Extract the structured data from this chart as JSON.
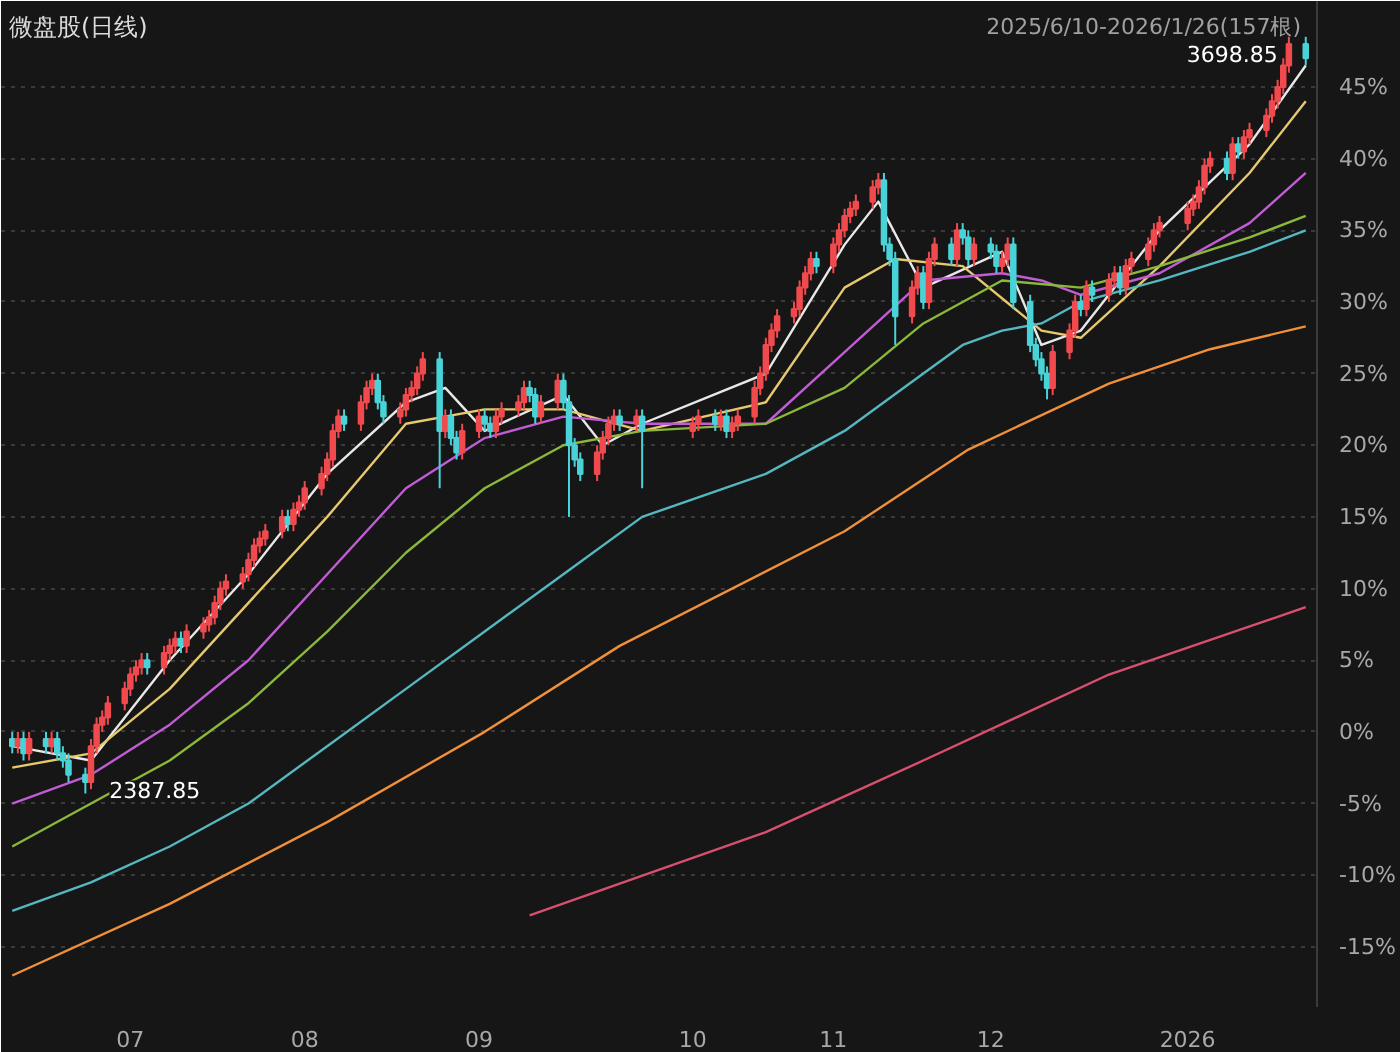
{
  "chart_data": {
    "type": "candlestick",
    "title": "微盘股(日线)",
    "subtitle": "2025/6/10-2026/1/26(157根)",
    "x": [
      "2025-06-10",
      "2025-06-11",
      "2025-06-12",
      "2025-06-13",
      "2025-06-16",
      "2025-06-17",
      "2025-06-18",
      "2025-06-19",
      "2025-06-20",
      "2025-06-23",
      "2025-06-24",
      "2025-06-25",
      "2025-06-26",
      "2025-06-27",
      "2025-06-30",
      "2025-07-01",
      "2025-07-02",
      "2025-07-03",
      "2025-07-04",
      "2025-07-07",
      "2025-07-08",
      "2025-07-09",
      "2025-07-10",
      "2025-07-11",
      "2025-07-14",
      "2025-07-15",
      "2025-07-16",
      "2025-07-17",
      "2025-07-18",
      "2025-07-21",
      "2025-07-22",
      "2025-07-23",
      "2025-07-24",
      "2025-07-25",
      "2025-07-28",
      "2025-07-29",
      "2025-07-30",
      "2025-07-31",
      "2025-08-01",
      "2025-08-04",
      "2025-08-05",
      "2025-08-06",
      "2025-08-07",
      "2025-08-08",
      "2025-08-11",
      "2025-08-12",
      "2025-08-13",
      "2025-08-14",
      "2025-08-15",
      "2025-08-18",
      "2025-08-19",
      "2025-08-20",
      "2025-08-21",
      "2025-08-22",
      "2025-08-25",
      "2025-08-26",
      "2025-08-27",
      "2025-08-28",
      "2025-08-29",
      "2025-09-01",
      "2025-09-02",
      "2025-09-03",
      "2025-09-04",
      "2025-09-05",
      "2025-09-08",
      "2025-09-09",
      "2025-09-10",
      "2025-09-11",
      "2025-09-12",
      "2025-09-15",
      "2025-09-16",
      "2025-09-17",
      "2025-09-18",
      "2025-09-19",
      "2025-09-22",
      "2025-09-23",
      "2025-09-24",
      "2025-09-25",
      "2025-09-26",
      "2025-09-29",
      "2025-09-30",
      "2025-10-09",
      "2025-10-10",
      "2025-10-13",
      "2025-10-14",
      "2025-10-15",
      "2025-10-16",
      "2025-10-17",
      "2025-10-20",
      "2025-10-21",
      "2025-10-22",
      "2025-10-23",
      "2025-10-24",
      "2025-10-27",
      "2025-10-28",
      "2025-10-29",
      "2025-10-30",
      "2025-10-31",
      "2025-11-03",
      "2025-11-04",
      "2025-11-05",
      "2025-11-06",
      "2025-11-07",
      "2025-11-10",
      "2025-11-11",
      "2025-11-12",
      "2025-11-13",
      "2025-11-14",
      "2025-11-17",
      "2025-11-18",
      "2025-11-19",
      "2025-11-20",
      "2025-11-21",
      "2025-11-24",
      "2025-11-25",
      "2025-11-26",
      "2025-11-27",
      "2025-11-28",
      "2025-12-01",
      "2025-12-02",
      "2025-12-03",
      "2025-12-04",
      "2025-12-05",
      "2025-12-08",
      "2025-12-09",
      "2025-12-10",
      "2025-12-11",
      "2025-12-12",
      "2025-12-15",
      "2025-12-16",
      "2025-12-17",
      "2025-12-18",
      "2025-12-19",
      "2025-12-22",
      "2025-12-23",
      "2025-12-24",
      "2025-12-25",
      "2025-12-26",
      "2025-12-29",
      "2025-12-30",
      "2025-12-31",
      "2026-01-05",
      "2026-01-06",
      "2026-01-07",
      "2026-01-08",
      "2026-01-09",
      "2026-01-12",
      "2026-01-13",
      "2026-01-14",
      "2026-01-15",
      "2026-01-16",
      "2026-01-19",
      "2026-01-20",
      "2026-01-21",
      "2026-01-22",
      "2026-01-23",
      "2026-01-26"
    ],
    "colors": [
      "#49d3d8",
      "#f04a4e",
      "#49d3d8",
      "#f04a4e",
      "#49d3d8",
      "#f04a4e",
      "#49d3d8",
      "#49d3d8",
      "#49d3d8",
      "#49d3d8",
      "#f04a4e",
      "#f04a4e",
      "#f04a4e",
      "#f04a4e",
      "#f04a4e",
      "#f04a4e",
      "#f04a4e",
      "#f04a4e",
      "#49d3d8",
      "#f04a4e",
      "#f04a4e",
      "#f04a4e",
      "#49d3d8",
      "#f04a4e",
      "#f04a4e",
      "#f04a4e",
      "#f04a4e",
      "#f04a4e",
      "#f04a4e",
      "#f04a4e",
      "#f04a4e",
      "#f04a4e",
      "#f04a4e",
      "#f04a4e",
      "#f04a4e",
      "#49d3d8",
      "#f04a4e",
      "#f04a4e",
      "#f04a4e",
      "#f04a4e",
      "#f04a4e",
      "#f04a4e",
      "#f04a4e",
      "#49d3d8",
      "#f04a4e",
      "#f04a4e",
      "#f04a4e",
      "#49d3d8",
      "#49d3d8",
      "#f04a4e",
      "#f04a4e",
      "#f04a4e",
      "#f04a4e",
      "#f04a4e",
      "#49d3d8",
      "#f04a4e",
      "#49d3d8",
      "#49d3d8",
      "#f04a4e",
      "#f04a4e",
      "#49d3d8",
      "#49d3d8",
      "#f04a4e",
      "#f04a4e",
      "#f04a4e",
      "#f04a4e",
      "#49d3d8",
      "#49d3d8",
      "#f04a4e",
      "#f04a4e",
      "#49d3d8",
      "#49d3d8",
      "#49d3d8",
      "#49d3d8",
      "#f04a4e",
      "#f04a4e",
      "#f04a4e",
      "#f04a4e",
      "#49d3d8",
      "#f04a4e",
      "#49d3d8",
      "#f04a4e",
      "#f04a4e",
      "#49d3d8",
      "#f04a4e",
      "#49d3d8",
      "#f04a4e",
      "#f04a4e",
      "#f04a4e",
      "#f04a4e",
      "#f04a4e",
      "#f04a4e",
      "#f04a4e",
      "#f04a4e",
      "#f04a4e",
      "#f04a4e",
      "#f04a4e",
      "#49d3d8",
      "#f04a4e",
      "#f04a4e",
      "#f04a4e",
      "#f04a4e",
      "#f04a4e",
      "#f04a4e",
      "#f04a4e",
      "#49d3d8",
      "#49d3d8",
      "#49d3d8",
      "#f04a4e",
      "#f04a4e",
      "#49d3d8",
      "#f04a4e",
      "#f04a4e",
      "#49d3d8",
      "#f04a4e",
      "#49d3d8",
      "#49d3d8",
      "#f04a4e",
      "#49d3d8",
      "#49d3d8",
      "#f04a4e",
      "#f04a4e",
      "#49d3d8",
      "#49d3d8",
      "#49d3d8",
      "#49d3d8",
      "#49d3d8",
      "#f04a4e",
      "#f04a4e",
      "#f04a4e",
      "#49d3d8",
      "#f04a4e",
      "#49d3d8",
      "#f04a4e",
      "#f04a4e",
      "#49d3d8",
      "#f04a4e",
      "#f04a4e",
      "#f04a4e",
      "#f04a4e",
      "#f04a4e",
      "#f04a4e",
      "#f04a4e",
      "#f04a4e",
      "#f04a4e",
      "#f04a4e",
      "#49d3d8",
      "#f04a4e",
      "#49d3d8",
      "#f04a4e",
      "#f04a4e",
      "#f04a4e",
      "#f04a4e",
      "#f04a4e",
      "#f04a4e",
      "#f04a4e",
      "#49d3d8"
    ],
    "ohlc": [
      [
        -0.5,
        0,
        -1.5,
        -1
      ],
      [
        -1,
        0,
        -1.5,
        -0.5
      ],
      [
        -0.5,
        0,
        -2,
        -1.5
      ],
      [
        -1.5,
        0,
        -2,
        -0.5
      ],
      [
        -0.5,
        0,
        -1.5,
        -1
      ],
      [
        -1,
        0,
        -1.5,
        -0.5
      ],
      [
        -0.5,
        0,
        -2,
        -1.5
      ],
      [
        -1.5,
        -1,
        -2.5,
        -2
      ],
      [
        -2,
        -1.5,
        -3.5,
        -3
      ],
      [
        -3,
        -2.5,
        -4.3,
        -3.5
      ],
      [
        -3.5,
        -0.5,
        -4,
        -1
      ],
      [
        -1,
        1,
        -1.5,
        0.5
      ],
      [
        0.5,
        1.5,
        0,
        1
      ],
      [
        1,
        2.5,
        0.5,
        2
      ],
      [
        2,
        3.5,
        1.5,
        3
      ],
      [
        3,
        4.5,
        2.5,
        4
      ],
      [
        4,
        5,
        3.5,
        4.5
      ],
      [
        4.5,
        5.5,
        4,
        5
      ],
      [
        5,
        5.5,
        4,
        4.5
      ],
      [
        4.5,
        6,
        4,
        5.5
      ],
      [
        5.5,
        6.5,
        5,
        6
      ],
      [
        6,
        7,
        5.5,
        6.5
      ],
      [
        6.5,
        7,
        5.5,
        6
      ],
      [
        6,
        7.5,
        5.5,
        7
      ],
      [
        7,
        8,
        6.5,
        7.5
      ],
      [
        7.5,
        8.5,
        7,
        8
      ],
      [
        8,
        9.5,
        7.5,
        9
      ],
      [
        9,
        10.5,
        8.5,
        10
      ],
      [
        10,
        11,
        9.5,
        10.5
      ],
      [
        10.5,
        11.5,
        10,
        11
      ],
      [
        11,
        12.5,
        10.5,
        12
      ],
      [
        12,
        13.5,
        11.5,
        13
      ],
      [
        13,
        14,
        12.5,
        13.5
      ],
      [
        13.5,
        14.5,
        13,
        14
      ],
      [
        14,
        15.5,
        13.5,
        15
      ],
      [
        15,
        15.5,
        14,
        14.5
      ],
      [
        14.5,
        16,
        14,
        15.5
      ],
      [
        15.5,
        16.5,
        15,
        16
      ],
      [
        16,
        17.5,
        15.5,
        17
      ],
      [
        17,
        18.5,
        16.5,
        18
      ],
      [
        18,
        19.5,
        17.5,
        19
      ],
      [
        19,
        21.5,
        18.5,
        21
      ],
      [
        21,
        22.5,
        20.5,
        22
      ],
      [
        22,
        22.5,
        21,
        21.5
      ],
      [
        21.5,
        23.5,
        21,
        23
      ],
      [
        23,
        24.5,
        22.5,
        24
      ],
      [
        24,
        25,
        23.5,
        24.5
      ],
      [
        24.5,
        25,
        22.5,
        23
      ],
      [
        23,
        23.5,
        21.5,
        22
      ],
      [
        22,
        23,
        21.5,
        22.5
      ],
      [
        22.5,
        24,
        22,
        23.5
      ],
      [
        23.5,
        24.5,
        23,
        24
      ],
      [
        24,
        25.5,
        23.5,
        25
      ],
      [
        25,
        26.5,
        24.5,
        26
      ],
      [
        26,
        26.5,
        17,
        21
      ],
      [
        21,
        22.5,
        20.5,
        22
      ],
      [
        22,
        22.5,
        20,
        20.5
      ],
      [
        20.5,
        21,
        19,
        19.5
      ],
      [
        19.5,
        21.5,
        19,
        21
      ],
      [
        21,
        22.5,
        20.5,
        22
      ],
      [
        22,
        22.5,
        21,
        21.5
      ],
      [
        21.5,
        22,
        20.5,
        21
      ],
      [
        21,
        22.5,
        20.5,
        22
      ],
      [
        22,
        23,
        21.5,
        22.5
      ],
      [
        22.5,
        23.5,
        22,
        23
      ],
      [
        23,
        24.5,
        22.5,
        24
      ],
      [
        24,
        24.5,
        23,
        23.5
      ],
      [
        23.5,
        24,
        21.5,
        22
      ],
      [
        22,
        23.5,
        21.5,
        23
      ],
      [
        23,
        25,
        22.5,
        24.5
      ],
      [
        24.5,
        25,
        22.5,
        23
      ],
      [
        23,
        23.5,
        15,
        20
      ],
      [
        20,
        20.5,
        18.5,
        19
      ],
      [
        19,
        19.5,
        17.5,
        18
      ],
      [
        18,
        20,
        17.5,
        19.5
      ],
      [
        19.5,
        21,
        19,
        20.5
      ],
      [
        20.5,
        22,
        20,
        21.5
      ],
      [
        21.5,
        22.5,
        21,
        22
      ],
      [
        22,
        22.5,
        21,
        21.5
      ],
      [
        21.5,
        22.5,
        21,
        22
      ],
      [
        22,
        22.5,
        17,
        21
      ],
      [
        21,
        22,
        20.5,
        21.5
      ],
      [
        21.5,
        22.5,
        21,
        22
      ],
      [
        22,
        22.5,
        21,
        21.5
      ],
      [
        21.5,
        22.5,
        21,
        22
      ],
      [
        22,
        22.5,
        20.5,
        21
      ],
      [
        21,
        22,
        20.5,
        21.5
      ],
      [
        21.5,
        22.5,
        21,
        22
      ],
      [
        22,
        24.5,
        21.5,
        24
      ],
      [
        24,
        25.5,
        23.5,
        25
      ],
      [
        25,
        27.5,
        24.5,
        27
      ],
      [
        27,
        28.5,
        26.5,
        28
      ],
      [
        28,
        29.5,
        27.5,
        29
      ],
      [
        29,
        30,
        28.5,
        29.5
      ],
      [
        29.5,
        31.5,
        29,
        31
      ],
      [
        31,
        32.5,
        30.5,
        32
      ],
      [
        32,
        33.5,
        31.5,
        33
      ],
      [
        33,
        33.5,
        32,
        32.5
      ],
      [
        32.5,
        34.5,
        32,
        34
      ],
      [
        34,
        35.5,
        33.5,
        35
      ],
      [
        35,
        36.5,
        34.5,
        36
      ],
      [
        36,
        37,
        35.5,
        36.5
      ],
      [
        36.5,
        37.5,
        36,
        37
      ],
      [
        37,
        38.5,
        36.5,
        38
      ],
      [
        38,
        39,
        37.5,
        38.5
      ],
      [
        38.5,
        39,
        33.5,
        34
      ],
      [
        34,
        34.5,
        32.5,
        33
      ],
      [
        33,
        33.5,
        27,
        29
      ],
      [
        29,
        31.5,
        28.5,
        31
      ],
      [
        31,
        32.5,
        30.5,
        32
      ],
      [
        32,
        32.5,
        29.5,
        30
      ],
      [
        30,
        33.5,
        29.5,
        33
      ],
      [
        33,
        34.5,
        32.5,
        34
      ],
      [
        34,
        34.5,
        32.5,
        33
      ],
      [
        33,
        35.5,
        32.5,
        35
      ],
      [
        35,
        35.5,
        34,
        34.5
      ],
      [
        34.5,
        35,
        32.5,
        33
      ],
      [
        33,
        34.5,
        32.5,
        34
      ],
      [
        34,
        34.5,
        33,
        33.5
      ],
      [
        33.5,
        34,
        32,
        32.5
      ],
      [
        32.5,
        33.5,
        32,
        33
      ],
      [
        33,
        34.5,
        32.5,
        34
      ],
      [
        34,
        34.5,
        29.5,
        30
      ],
      [
        30,
        30.5,
        26.5,
        27
      ],
      [
        27,
        27.5,
        25.5,
        26
      ],
      [
        26,
        26.5,
        24.5,
        25
      ],
      [
        25,
        25.5,
        23.2,
        24
      ],
      [
        24,
        27,
        23.5,
        26.5
      ],
      [
        26.5,
        28.5,
        26,
        28
      ],
      [
        28,
        30.5,
        27.5,
        30
      ],
      [
        30,
        30.5,
        29,
        29.5
      ],
      [
        29.5,
        31.5,
        29,
        31
      ],
      [
        31,
        31.5,
        30,
        30.5
      ],
      [
        30.5,
        32,
        30,
        31.5
      ],
      [
        31.5,
        32.5,
        31,
        32
      ],
      [
        32,
        32.5,
        30.5,
        31
      ],
      [
        31,
        33,
        30.5,
        32.5
      ],
      [
        32.5,
        33.5,
        32,
        33
      ],
      [
        33,
        34.5,
        32.5,
        34
      ],
      [
        34,
        35.5,
        33.5,
        35
      ],
      [
        35,
        36,
        34.5,
        35.5
      ],
      [
        35.5,
        37,
        35,
        36.5
      ],
      [
        36.5,
        37.5,
        36,
        37
      ],
      [
        37,
        38.5,
        36.5,
        38
      ],
      [
        38,
        40,
        37.5,
        39.5
      ],
      [
        39.5,
        40.5,
        39,
        40
      ],
      [
        40,
        40.5,
        38.5,
        39
      ],
      [
        39,
        41.5,
        38.5,
        41
      ],
      [
        41,
        41.5,
        40,
        40.5
      ],
      [
        40.5,
        42,
        40,
        41.5
      ],
      [
        41.5,
        42.5,
        41,
        42
      ],
      [
        42,
        43.5,
        41.5,
        43
      ],
      [
        43,
        44.5,
        42.5,
        44
      ],
      [
        44,
        45.5,
        43.5,
        45
      ],
      [
        45,
        47,
        44.5,
        46.5
      ],
      [
        46.5,
        48.5,
        46,
        48
      ],
      [
        48,
        48.5,
        46.5,
        47
      ]
    ],
    "series": [
      {
        "type": "line",
        "color": "#e8e8e8",
        "x": [
          "2025-06-10",
          "2025-06-24",
          "2025-07-08",
          "2025-07-22",
          "2025-08-05",
          "2025-08-19",
          "2025-08-26",
          "2025-09-02",
          "2025-09-16",
          "2025-09-23",
          "2025-09-30",
          "2025-10-22",
          "2025-11-05",
          "2025-11-11",
          "2025-11-19",
          "2025-12-03",
          "2025-12-10",
          "2025-12-17",
          "2025-12-31",
          "2026-01-16",
          "2026-01-26"
        ],
        "values": [
          -1,
          -2,
          5,
          11,
          18,
          23,
          24,
          21,
          23.5,
          20,
          21.5,
          25,
          34,
          37,
          31,
          33.5,
          27,
          28,
          35,
          41,
          46.5
        ]
      },
      {
        "type": "line",
        "color": "#e6c86e",
        "x": [
          "2025-06-10",
          "2025-06-24",
          "2025-07-08",
          "2025-07-22",
          "2025-08-05",
          "2025-08-19",
          "2025-09-02",
          "2025-09-16",
          "2025-09-30",
          "2025-10-22",
          "2025-11-05",
          "2025-11-14",
          "2025-11-26",
          "2025-12-10",
          "2025-12-17",
          "2025-12-31",
          "2026-01-16",
          "2026-01-26"
        ],
        "values": [
          -2.5,
          -1.5,
          3,
          9,
          15,
          21.5,
          22.5,
          22.5,
          21,
          23,
          31,
          33,
          32.5,
          28,
          27.5,
          32.5,
          39,
          44
        ]
      },
      {
        "type": "line",
        "color": "#c15cd6",
        "x": [
          "2025-06-10",
          "2025-06-24",
          "2025-07-08",
          "2025-07-22",
          "2025-08-05",
          "2025-08-19",
          "2025-09-02",
          "2025-09-16",
          "2025-09-30",
          "2025-10-22",
          "2025-11-05",
          "2025-11-19",
          "2025-12-03",
          "2025-12-10",
          "2025-12-17",
          "2025-12-31",
          "2026-01-16",
          "2026-01-26"
        ],
        "values": [
          -5,
          -3,
          0.5,
          5,
          11,
          17,
          20.5,
          22,
          21.5,
          21.5,
          26.5,
          31.5,
          32,
          31.5,
          30.5,
          32,
          35.5,
          39
        ]
      },
      {
        "type": "line",
        "color": "#8cb83a",
        "x": [
          "2025-06-10",
          "2025-06-24",
          "2025-07-08",
          "2025-07-22",
          "2025-08-05",
          "2025-08-19",
          "2025-09-02",
          "2025-09-16",
          "2025-09-30",
          "2025-10-22",
          "2025-11-05",
          "2025-11-19",
          "2025-12-03",
          "2025-12-17",
          "2025-12-31",
          "2026-01-16",
          "2026-01-26"
        ],
        "values": [
          -8,
          -5,
          -2,
          2,
          7,
          12.5,
          17,
          20,
          21,
          21.5,
          24,
          28.5,
          31.5,
          31,
          32.5,
          34.5,
          36
        ]
      },
      {
        "type": "line",
        "color": "#55b7c0",
        "x": [
          "2025-06-10",
          "2025-06-24",
          "2025-07-08",
          "2025-07-22",
          "2025-08-05",
          "2025-08-19",
          "2025-09-02",
          "2025-09-16",
          "2025-09-30",
          "2025-10-22",
          "2025-11-05",
          "2025-11-19",
          "2025-11-26",
          "2025-12-03",
          "2025-12-10",
          "2025-12-17",
          "2025-12-31",
          "2026-01-16",
          "2026-01-26"
        ],
        "values": [
          -12.5,
          -10.5,
          -8,
          -5,
          -1,
          3,
          7,
          11,
          15,
          18,
          21,
          25,
          27,
          28,
          28.5,
          30,
          31.5,
          33.5,
          35
        ]
      },
      {
        "type": "line",
        "color": "#f0903a",
        "x": [
          "2025-06-10",
          "2025-07-08",
          "2025-08-05",
          "2025-09-02",
          "2025-09-26",
          "2025-11-05",
          "2025-11-27",
          "2025-12-22",
          "2026-01-09",
          "2026-01-26"
        ],
        "values": [
          -17,
          -12,
          -6.3,
          0,
          6,
          14,
          19.7,
          24.3,
          26.7,
          28.3
        ]
      },
      {
        "type": "line",
        "color": "#d94f6e",
        "x": [
          "2025-09-10",
          "2025-10-22",
          "2025-11-19",
          "2025-12-22",
          "2026-01-26"
        ],
        "values": [
          -12.8,
          -7,
          -2,
          4,
          8.7
        ]
      }
    ],
    "xlim": [
      "2025-06-08",
      "2026-01-28"
    ],
    "xticks": [
      {
        "value": "2025-07-01",
        "label": "07"
      },
      {
        "value": "2025-08-01",
        "label": "08"
      },
      {
        "value": "2025-09-01",
        "label": "09"
      },
      {
        "value": "2025-10-09",
        "label": "10"
      },
      {
        "value": "2025-11-03",
        "label": "11"
      },
      {
        "value": "2025-12-01",
        "label": "12"
      },
      {
        "value": "2026-01-05",
        "label": "2026"
      }
    ],
    "ylim": [
      -19.2,
      51
    ],
    "yticks": [
      {
        "value": -15,
        "label": "-15%"
      },
      {
        "value": -10,
        "label": "-10%"
      },
      {
        "value": -5,
        "label": "-5%"
      },
      {
        "value": 0,
        "label": "0%"
      },
      {
        "value": 5,
        "label": "5%"
      },
      {
        "value": 10,
        "label": "10%"
      },
      {
        "value": 15,
        "label": "15%"
      },
      {
        "value": 20,
        "label": "20%"
      },
      {
        "value": 25,
        "label": "25%"
      },
      {
        "value": 30,
        "label": "30%"
      },
      {
        "value": 35,
        "label": "35%"
      },
      {
        "value": 40,
        "label": "40%"
      },
      {
        "value": 45,
        "label": "45%"
      }
    ],
    "grid": "y",
    "annotations": [
      {
        "text": "3698.85",
        "x": "2026-01-26",
        "y": 48.5
      },
      {
        "text": "2387.85",
        "x": "2025-06-23",
        "y": -4.3
      }
    ]
  }
}
